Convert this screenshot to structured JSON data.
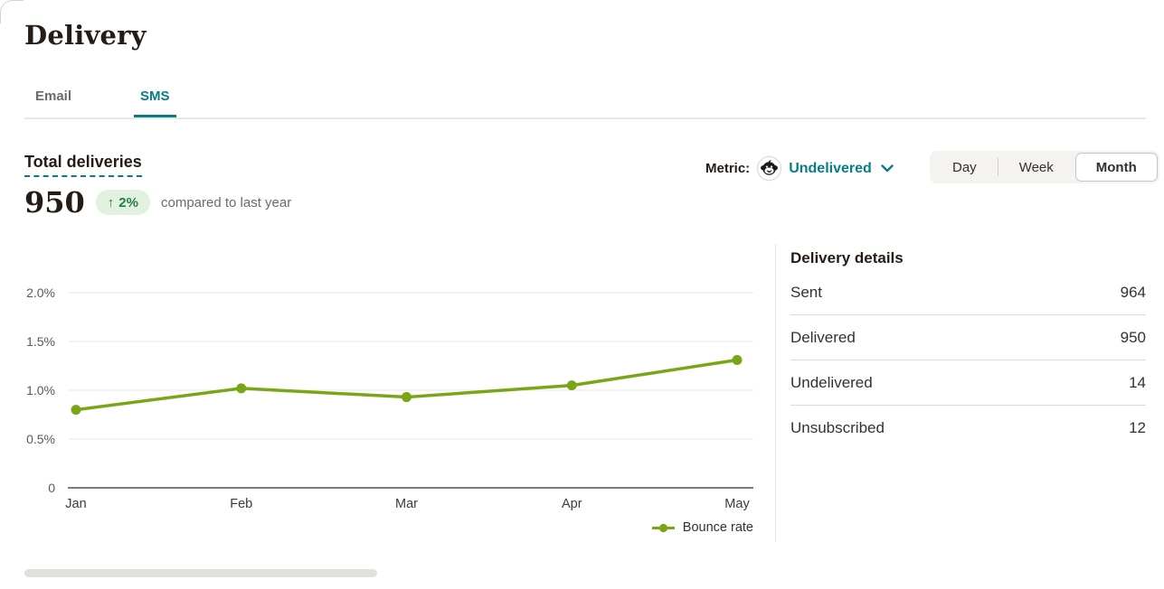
{
  "page": {
    "title": "Delivery"
  },
  "tabs": [
    {
      "label": "Email",
      "active": false
    },
    {
      "label": "SMS",
      "active": true
    }
  ],
  "summary": {
    "label": "Total deliveries",
    "value": "950",
    "change": "2%",
    "change_direction": "up",
    "comparison": "compared to last year"
  },
  "controls": {
    "metric_label": "Metric:",
    "metric_value": "Undelivered",
    "range_options": [
      "Day",
      "Week",
      "Month"
    ],
    "range_selected": "Month"
  },
  "icons": {
    "metric_logo": "mailchimp-freddie",
    "metric_dropdown": "chevron-down",
    "change_direction": "arrow-up",
    "legend_marker": "line-with-dot"
  },
  "chart_data": {
    "type": "line",
    "x": [
      "Jan",
      "Feb",
      "Mar",
      "Apr",
      "May"
    ],
    "series": [
      {
        "name": "Bounce rate",
        "values": [
          0.8,
          1.02,
          0.93,
          1.05,
          1.31
        ]
      }
    ],
    "yticks": [
      "2.0%",
      "1.5%",
      "1.0%",
      "0.5%",
      "0"
    ],
    "ytick_values": [
      2.0,
      1.5,
      1.0,
      0.5,
      0
    ],
    "ylim": [
      0,
      2.0
    ],
    "unit": "%",
    "grid": true,
    "legend_position": "bottom-right",
    "line_color": "#7AA616"
  },
  "details": {
    "title": "Delivery details",
    "rows": [
      {
        "label": "Sent",
        "value": "964"
      },
      {
        "label": "Delivered",
        "value": "950"
      },
      {
        "label": "Undelivered",
        "value": "14"
      },
      {
        "label": "Unsubscribed",
        "value": "12"
      }
    ]
  },
  "colors": {
    "accent_teal": "#087D87",
    "chart_line_green": "#7AA616",
    "positive_green": "#1E7E4D",
    "positive_badge_bg": "#E3F1E1"
  }
}
